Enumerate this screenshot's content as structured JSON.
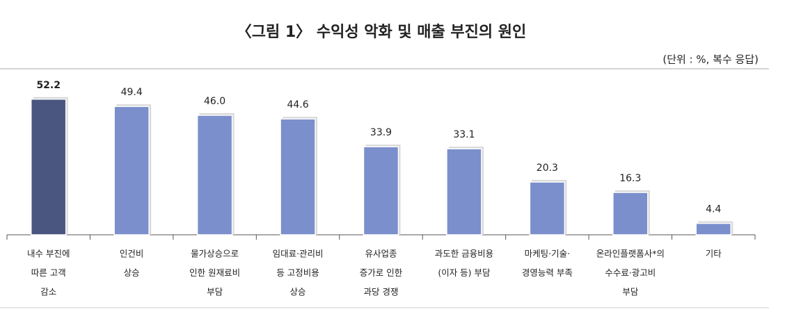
{
  "chart_data": {
    "type": "bar",
    "title": "〈그림 1〉 수익성 악화 및 매출 부진의 원인",
    "subtitle": "(단위 : %, 복수 응답)",
    "categories": [
      [
        "내수 부진에",
        "따른 고객",
        "감소"
      ],
      [
        "인건비",
        "상승"
      ],
      [
        "물가상승으로",
        "인한 원재료비",
        "부담"
      ],
      [
        "임대료·관리비",
        "등 고정비용",
        "상승"
      ],
      [
        "유사업종",
        "증가로 인한",
        "과당 경쟁"
      ],
      [
        "과도한 금융비용",
        "(이자 등) 부담"
      ],
      [
        "마케팅·기술·",
        "경영능력 부족"
      ],
      [
        "온라인플랫폼사*의",
        "수수료·광고비",
        "부담"
      ],
      [
        "기타"
      ]
    ],
    "values": [
      52.2,
      49.4,
      46.0,
      44.6,
      33.9,
      33.1,
      20.3,
      16.3,
      4.4
    ],
    "value_labels": [
      "52.2",
      "49.4",
      "46.0",
      "44.6",
      "33.9",
      "33.1",
      "20.3",
      "16.3",
      "4.4"
    ],
    "colors": [
      "#4a5680",
      "#7b8fcc",
      "#7b8fcc",
      "#7b8fcc",
      "#7b8fcc",
      "#7b8fcc",
      "#7b8fcc",
      "#7b8fcc",
      "#7b8fcc"
    ]
  }
}
